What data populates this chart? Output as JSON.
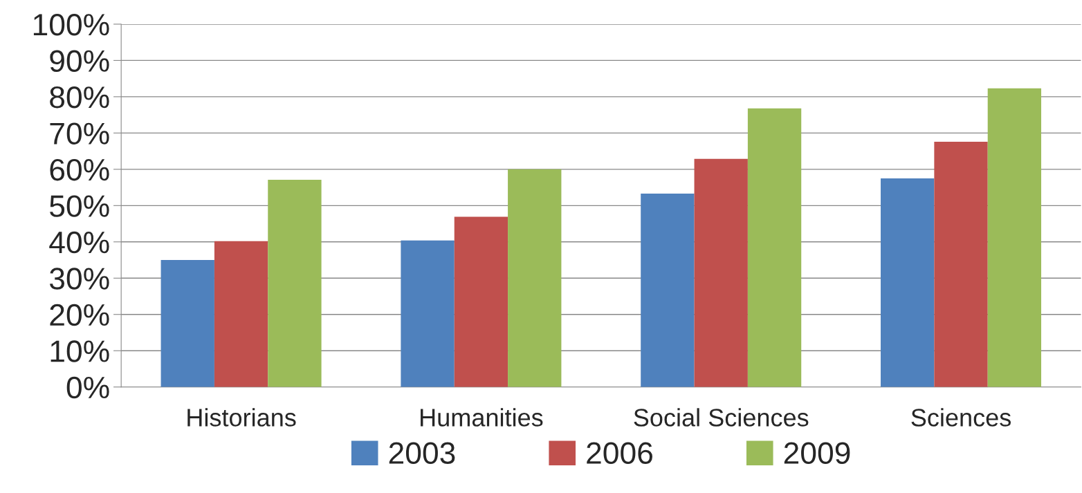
{
  "chart_data": {
    "type": "bar",
    "categories": [
      "Historians",
      "Humanities",
      "Social Sciences",
      "Sciences"
    ],
    "series": [
      {
        "name": "2003",
        "color": "#4f81bd",
        "values": [
          35.0,
          40.4,
          53.3,
          57.5
        ]
      },
      {
        "name": "2006",
        "color": "#c0504d",
        "values": [
          40.2,
          46.9,
          62.9,
          67.6
        ]
      },
      {
        "name": "2009",
        "color": "#9bbb59",
        "values": [
          57.1,
          60.0,
          76.8,
          82.3
        ]
      }
    ],
    "ylim": [
      0,
      100
    ],
    "yticks": [
      {
        "value": 0,
        "label": "0%"
      },
      {
        "value": 10,
        "label": "10%"
      },
      {
        "value": 20,
        "label": "20%"
      },
      {
        "value": 30,
        "label": "30%"
      },
      {
        "value": 40,
        "label": "40%"
      },
      {
        "value": 50,
        "label": "50%"
      },
      {
        "value": 60,
        "label": "60%"
      },
      {
        "value": 70,
        "label": "70%"
      },
      {
        "value": 80,
        "label": "80%"
      },
      {
        "value": 90,
        "label": "90%"
      },
      {
        "value": 100,
        "label": "100%"
      }
    ],
    "grid": "y",
    "legend": "bottom"
  }
}
